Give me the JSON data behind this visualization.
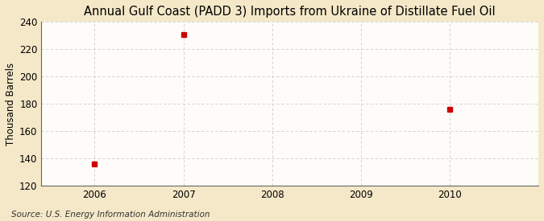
{
  "title": "Annual Gulf Coast (PADD 3) Imports from Ukraine of Distillate Fuel Oil",
  "ylabel": "Thousand Barrels",
  "source": "Source: U.S. Energy Information Administration",
  "data_years": [
    2006,
    2007,
    2010
  ],
  "data_values": [
    136,
    231,
    176
  ],
  "xlim": [
    2005.4,
    2011.0
  ],
  "ylim": [
    120,
    240
  ],
  "yticks": [
    120,
    140,
    160,
    180,
    200,
    220,
    240
  ],
  "xticks": [
    2006,
    2007,
    2008,
    2009,
    2010
  ],
  "background_color": "#f5e8c8",
  "plot_bg_color": "#fdfcf8",
  "grid_color": "#cccccc",
  "marker_color": "#cc0000",
  "marker_size": 4,
  "title_fontsize": 10.5,
  "label_fontsize": 8.5,
  "tick_fontsize": 8.5,
  "source_fontsize": 7.5
}
